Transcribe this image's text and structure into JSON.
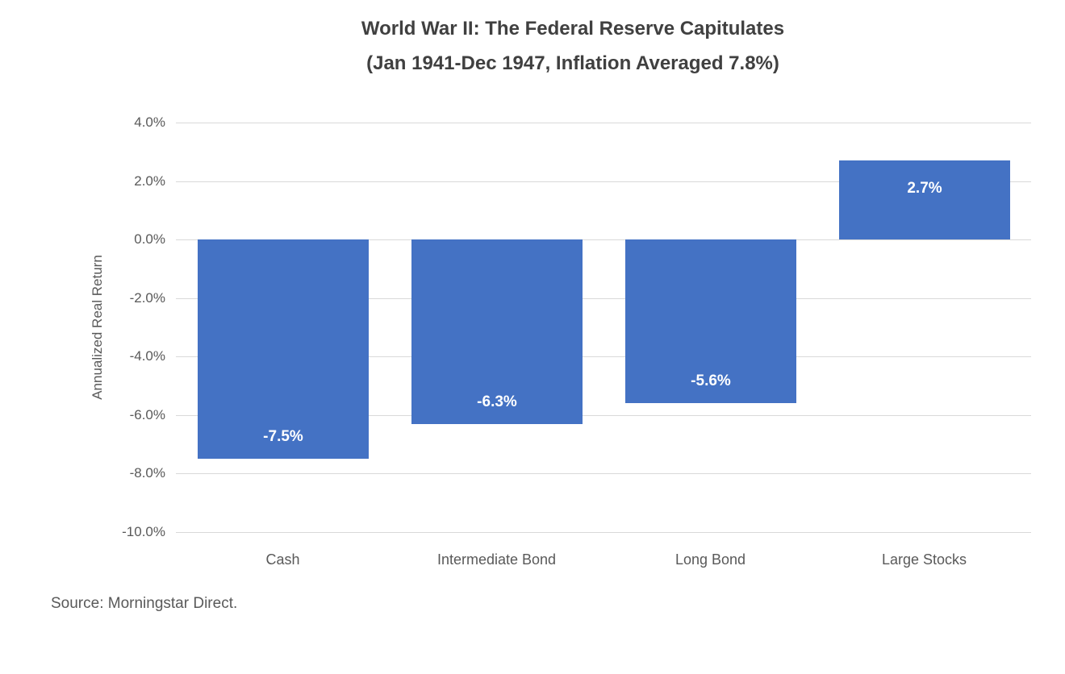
{
  "source": "Source: Morningstar Direct.",
  "chart_data": {
    "type": "bar",
    "title": "World War II: The Federal Reserve Capitulates",
    "subtitle": "(Jan 1941-Dec 1947, Inflation Averaged 7.8%)",
    "ylabel": "Annualized Real Return",
    "xlabel": "",
    "categories": [
      "Cash",
      "Intermediate Bond",
      "Long Bond",
      "Large Stocks"
    ],
    "values": [
      -7.5,
      -6.3,
      -5.6,
      2.7
    ],
    "value_labels": [
      "-7.5%",
      "-6.3%",
      "-5.6%",
      "2.7%"
    ],
    "ylim": [
      -10,
      4
    ],
    "yticks": [
      4,
      2,
      0,
      -2,
      -4,
      -6,
      -8,
      -10
    ],
    "ytick_labels": [
      "4.0%",
      "2.0%",
      "0.0%",
      "-2.0%",
      "-4.0%",
      "-6.0%",
      "-8.0%",
      "-10.0%"
    ],
    "grid": true,
    "legend": false,
    "bar_color": "#4472C4",
    "label_color": "#FFFFFF",
    "gridline_color": "#D9D9D9"
  }
}
